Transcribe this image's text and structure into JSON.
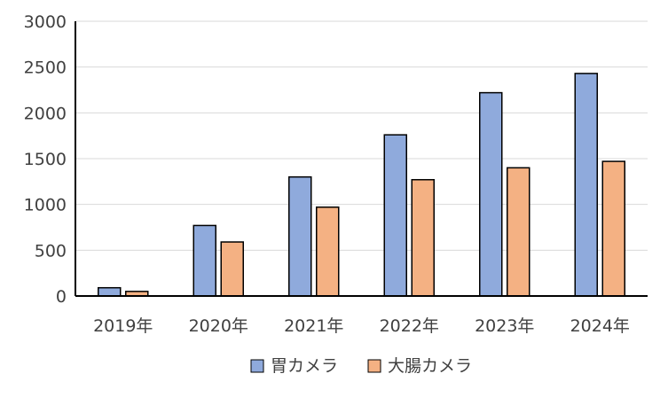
{
  "chart_data": {
    "type": "bar",
    "title": "",
    "xlabel": "",
    "ylabel": "",
    "categories": [
      "2019年",
      "2020年",
      "2021年",
      "2022年",
      "2023年",
      "2024年"
    ],
    "series": [
      {
        "name": "胃カメラ",
        "color": "#8faadc",
        "values": [
          90,
          770,
          1300,
          1760,
          2220,
          2430
        ]
      },
      {
        "name": "大腸カメラ",
        "color": "#f4b183",
        "values": [
          50,
          590,
          970,
          1270,
          1400,
          1470
        ]
      }
    ],
    "ylim": [
      0,
      3000
    ],
    "yticks": [
      0,
      500,
      1000,
      1500,
      2000,
      2500,
      3000
    ],
    "grid": true,
    "legend_position": "bottom"
  }
}
